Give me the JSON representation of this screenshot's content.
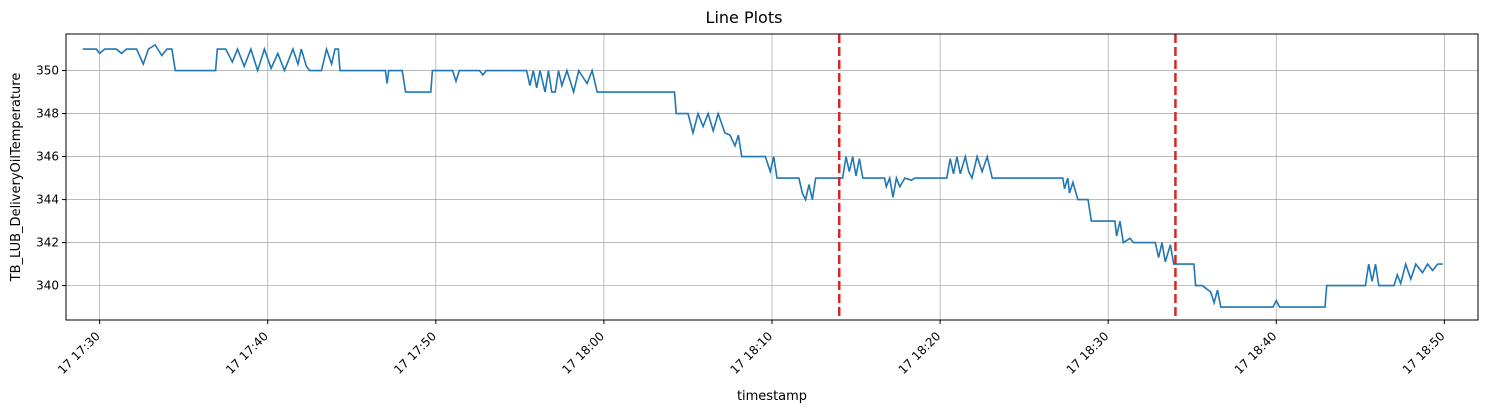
{
  "chart_data": {
    "type": "line",
    "title": "Line Plots",
    "xlabel": "timestamp",
    "ylabel": "TB_LUB_DeliveryOilTemperature",
    "x_range": [
      "17 17:28",
      "17 18:52"
    ],
    "ylim": [
      338.4,
      351.7
    ],
    "grid": true,
    "x_ticks": [
      {
        "label": "17 17:30",
        "minutes": 30
      },
      {
        "label": "17 17:40",
        "minutes": 40
      },
      {
        "label": "17 17:50",
        "minutes": 50
      },
      {
        "label": "17 18:00",
        "minutes": 60
      },
      {
        "label": "17 18:10",
        "minutes": 70
      },
      {
        "label": "17 18:20",
        "minutes": 80
      },
      {
        "label": "17 18:30",
        "minutes": 90
      },
      {
        "label": "17 18:40",
        "minutes": 100
      },
      {
        "label": "17 18:50",
        "minutes": 110
      }
    ],
    "y_ticks": [
      340,
      342,
      344,
      346,
      348,
      350
    ],
    "series": [
      {
        "color": "#1f77b4",
        "x_unit": "minutes after 17 17:00",
        "points": [
          [
            29.0,
            351
          ],
          [
            29.8,
            351
          ],
          [
            30.0,
            350.8
          ],
          [
            30.3,
            351
          ],
          [
            31.0,
            351
          ],
          [
            31.3,
            350.8
          ],
          [
            31.6,
            351
          ],
          [
            32.2,
            351
          ],
          [
            32.6,
            350.3
          ],
          [
            32.9,
            351
          ],
          [
            33.3,
            351.2
          ],
          [
            33.7,
            350.7
          ],
          [
            34.0,
            351
          ],
          [
            34.3,
            351
          ],
          [
            34.5,
            350
          ],
          [
            36.9,
            350
          ],
          [
            37.0,
            351
          ],
          [
            37.5,
            351
          ],
          [
            37.9,
            350.4
          ],
          [
            38.2,
            351
          ],
          [
            38.6,
            350.2
          ],
          [
            39.0,
            351
          ],
          [
            39.4,
            350
          ],
          [
            39.8,
            351
          ],
          [
            40.2,
            350.1
          ],
          [
            40.6,
            350.8
          ],
          [
            41.0,
            350
          ],
          [
            41.5,
            351
          ],
          [
            41.8,
            350.3
          ],
          [
            42.0,
            351
          ],
          [
            42.3,
            350.2
          ],
          [
            42.5,
            350
          ],
          [
            43.2,
            350
          ],
          [
            43.5,
            351
          ],
          [
            43.8,
            350.3
          ],
          [
            44.0,
            351
          ],
          [
            44.2,
            351
          ],
          [
            44.3,
            350
          ],
          [
            47.0,
            350
          ],
          [
            47.1,
            349.4
          ],
          [
            47.2,
            350
          ],
          [
            48.0,
            350
          ],
          [
            48.2,
            349
          ],
          [
            49.7,
            349
          ],
          [
            49.8,
            350
          ],
          [
            51.0,
            350
          ],
          [
            51.2,
            349.5
          ],
          [
            51.4,
            350
          ],
          [
            52.6,
            350
          ],
          [
            52.8,
            349.8
          ],
          [
            53.0,
            350
          ],
          [
            55.4,
            350
          ],
          [
            55.6,
            349.3
          ],
          [
            55.8,
            350
          ],
          [
            56.0,
            349.2
          ],
          [
            56.2,
            350
          ],
          [
            56.5,
            349
          ],
          [
            56.7,
            350
          ],
          [
            56.9,
            349
          ],
          [
            57.1,
            349
          ],
          [
            57.3,
            350
          ],
          [
            57.5,
            349.3
          ],
          [
            57.8,
            350
          ],
          [
            58.2,
            349
          ],
          [
            58.5,
            350
          ],
          [
            59.0,
            349.4
          ],
          [
            59.3,
            350
          ],
          [
            59.6,
            349
          ],
          [
            64.2,
            349
          ],
          [
            64.3,
            348
          ],
          [
            65.0,
            348
          ],
          [
            65.3,
            347.1
          ],
          [
            65.6,
            348
          ],
          [
            65.9,
            347.4
          ],
          [
            66.2,
            348
          ],
          [
            66.5,
            347.2
          ],
          [
            66.8,
            348
          ],
          [
            67.2,
            347.1
          ],
          [
            67.5,
            347
          ],
          [
            67.8,
            346.5
          ],
          [
            68.0,
            347
          ],
          [
            68.2,
            346
          ],
          [
            69.6,
            346
          ],
          [
            69.9,
            345.3
          ],
          [
            70.1,
            346
          ],
          [
            70.3,
            345
          ],
          [
            71.6,
            345
          ],
          [
            71.8,
            344.3
          ],
          [
            72.0,
            344
          ],
          [
            72.2,
            344.7
          ],
          [
            72.4,
            344
          ],
          [
            72.6,
            345
          ],
          [
            74.2,
            345
          ],
          [
            74.4,
            346
          ],
          [
            74.6,
            345.3
          ],
          [
            74.8,
            346
          ],
          [
            75.0,
            345.1
          ],
          [
            75.2,
            345.9
          ],
          [
            75.4,
            345
          ],
          [
            76.7,
            345
          ],
          [
            76.8,
            344.6
          ],
          [
            77.0,
            345
          ],
          [
            77.2,
            344.1
          ],
          [
            77.4,
            345
          ],
          [
            77.6,
            344.6
          ],
          [
            77.9,
            345
          ],
          [
            78.3,
            344.9
          ],
          [
            78.5,
            345
          ],
          [
            80.4,
            345
          ],
          [
            80.6,
            345.9
          ],
          [
            80.8,
            345.2
          ],
          [
            81.0,
            346
          ],
          [
            81.2,
            345.2
          ],
          [
            81.5,
            346
          ],
          [
            81.7,
            345.3
          ],
          [
            81.9,
            345
          ],
          [
            82.2,
            346
          ],
          [
            82.5,
            345.3
          ],
          [
            82.8,
            346
          ],
          [
            83.1,
            345
          ],
          [
            87.3,
            345
          ],
          [
            87.4,
            344.5
          ],
          [
            87.6,
            345
          ],
          [
            87.7,
            344.3
          ],
          [
            87.9,
            344.8
          ],
          [
            88.2,
            344
          ],
          [
            88.8,
            344
          ],
          [
            89.0,
            343
          ],
          [
            90.4,
            343
          ],
          [
            90.5,
            342.3
          ],
          [
            90.7,
            343
          ],
          [
            90.9,
            342
          ],
          [
            91.3,
            342.2
          ],
          [
            91.5,
            342
          ],
          [
            92.8,
            342
          ],
          [
            93.0,
            341.3
          ],
          [
            93.2,
            342
          ],
          [
            93.4,
            341.1
          ],
          [
            93.7,
            341.9
          ],
          [
            93.9,
            341
          ],
          [
            95.1,
            341
          ],
          [
            95.2,
            340
          ],
          [
            95.6,
            340
          ],
          [
            96.1,
            339.7
          ],
          [
            96.3,
            339.2
          ],
          [
            96.5,
            339.8
          ],
          [
            96.7,
            339
          ],
          [
            99.8,
            339
          ],
          [
            100.0,
            339.3
          ],
          [
            100.2,
            339
          ],
          [
            102.9,
            339
          ],
          [
            103.0,
            340
          ],
          [
            105.3,
            340
          ],
          [
            105.5,
            341
          ],
          [
            105.7,
            340.2
          ],
          [
            105.9,
            341
          ],
          [
            106.1,
            340
          ],
          [
            107.0,
            340
          ],
          [
            107.2,
            340.5
          ],
          [
            107.4,
            340.1
          ],
          [
            107.7,
            341
          ],
          [
            108.0,
            340.3
          ],
          [
            108.3,
            341
          ],
          [
            108.7,
            340.6
          ],
          [
            109.0,
            341
          ],
          [
            109.3,
            340.7
          ],
          [
            109.6,
            341
          ],
          [
            109.9,
            341
          ]
        ]
      }
    ],
    "vlines": [
      {
        "x": "17 18:14",
        "minutes": 74.0,
        "color": "#d62728",
        "style": "dashed"
      },
      {
        "x": "17 18:34",
        "minutes": 94.0,
        "color": "#d62728",
        "style": "dashed"
      }
    ]
  }
}
